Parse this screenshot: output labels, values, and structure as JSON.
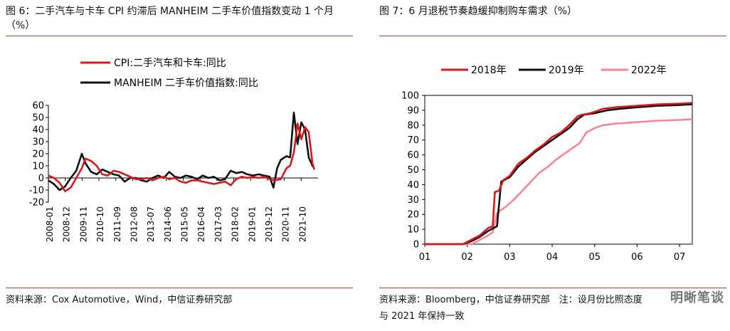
{
  "left": {
    "title": "图 6：二手汽车与卡车 CPI 约滞后 MANHEIM 二手车价值指数变动 1 个月（%）",
    "source": "资料来源：Cox Automotive，Wind，中信证券研究部"
  },
  "right": {
    "title": "图 7：6 月退税节奏趋缓抑制购车需求（%）",
    "source_line1": "资料来源：Bloomberg，中信证券研究部　注：设月份比照态度",
    "source_line2": "与 2021 年保持一致"
  },
  "watermark": "明晰笔谈",
  "chart_data": [
    {
      "type": "line",
      "title": "图 6：二手汽车与卡车 CPI 约滞后 MANHEIM 二手车价值指数变动 1 个月（%）",
      "ylim": [
        -20,
        60
      ],
      "yticks": [
        60,
        50,
        40,
        30,
        20,
        10,
        0,
        -10,
        -20
      ],
      "xlim": [
        2008.0,
        2022.5
      ],
      "xticks": [
        "2008-01",
        "2008-12",
        "2009-11",
        "2010-10",
        "2011-09",
        "2012-08",
        "2013-07",
        "2014-06",
        "2015-05",
        "2016-04",
        "2017-03",
        "2018-02",
        "2019-01",
        "2019-12",
        "2020-11",
        "2021-10"
      ],
      "grid": false,
      "legend": "top",
      "series": [
        {
          "name": "CPI:二手汽车和卡车:同比",
          "color": "#d7191c",
          "points": [
            [
              2008.0,
              2
            ],
            [
              2008.3,
              0
            ],
            [
              2008.6,
              -4
            ],
            [
              2008.9,
              -11
            ],
            [
              2009.2,
              -8
            ],
            [
              2009.5,
              0
            ],
            [
              2009.8,
              8
            ],
            [
              2010.0,
              16
            ],
            [
              2010.3,
              14
            ],
            [
              2010.6,
              10
            ],
            [
              2010.9,
              3
            ],
            [
              2011.2,
              2
            ],
            [
              2011.5,
              6
            ],
            [
              2011.8,
              5
            ],
            [
              2012.1,
              3
            ],
            [
              2012.4,
              1
            ],
            [
              2012.7,
              -1
            ],
            [
              2013.0,
              -1
            ],
            [
              2013.3,
              0
            ],
            [
              2013.6,
              -2
            ],
            [
              2013.9,
              0
            ],
            [
              2014.2,
              1
            ],
            [
              2014.5,
              -1
            ],
            [
              2014.8,
              0
            ],
            [
              2015.1,
              -3
            ],
            [
              2015.4,
              -4
            ],
            [
              2015.7,
              -2
            ],
            [
              2016.0,
              -2
            ],
            [
              2016.3,
              -3
            ],
            [
              2016.6,
              -4
            ],
            [
              2016.9,
              -5
            ],
            [
              2017.2,
              -4
            ],
            [
              2017.5,
              -3
            ],
            [
              2017.8,
              -6
            ],
            [
              2018.1,
              -1
            ],
            [
              2018.4,
              1
            ],
            [
              2018.7,
              0
            ],
            [
              2019.0,
              1
            ],
            [
              2019.3,
              0
            ],
            [
              2019.6,
              1
            ],
            [
              2019.9,
              -1
            ],
            [
              2020.2,
              -2
            ],
            [
              2020.5,
              -1
            ],
            [
              2020.8,
              8
            ],
            [
              2021.0,
              10
            ],
            [
              2021.2,
              21
            ],
            [
              2021.4,
              45
            ],
            [
              2021.6,
              32
            ],
            [
              2021.8,
              42
            ],
            [
              2022.0,
              38
            ],
            [
              2022.2,
              12
            ],
            [
              2022.3,
              7
            ]
          ]
        },
        {
          "name": "MANHEIM 二手车价值指数:同比",
          "color": "#111111",
          "points": [
            [
              2008.0,
              -2
            ],
            [
              2008.3,
              -5
            ],
            [
              2008.6,
              -10
            ],
            [
              2008.9,
              -7
            ],
            [
              2009.2,
              0
            ],
            [
              2009.5,
              6
            ],
            [
              2009.8,
              20
            ],
            [
              2010.0,
              12
            ],
            [
              2010.3,
              5
            ],
            [
              2010.6,
              3
            ],
            [
              2010.9,
              7
            ],
            [
              2011.2,
              5
            ],
            [
              2011.5,
              3
            ],
            [
              2011.8,
              2
            ],
            [
              2012.1,
              -3
            ],
            [
              2012.4,
              0
            ],
            [
              2012.7,
              0
            ],
            [
              2013.0,
              -2
            ],
            [
              2013.3,
              -3
            ],
            [
              2013.6,
              0
            ],
            [
              2013.9,
              2
            ],
            [
              2014.2,
              0
            ],
            [
              2014.5,
              5
            ],
            [
              2014.8,
              1
            ],
            [
              2015.1,
              0
            ],
            [
              2015.4,
              2
            ],
            [
              2015.7,
              1
            ],
            [
              2016.0,
              -1
            ],
            [
              2016.3,
              2
            ],
            [
              2016.6,
              0
            ],
            [
              2016.9,
              1
            ],
            [
              2017.2,
              -2
            ],
            [
              2017.5,
              -1
            ],
            [
              2017.8,
              6
            ],
            [
              2018.1,
              4
            ],
            [
              2018.4,
              5
            ],
            [
              2018.7,
              3
            ],
            [
              2019.0,
              2
            ],
            [
              2019.3,
              3
            ],
            [
              2019.6,
              2
            ],
            [
              2019.9,
              1
            ],
            [
              2020.1,
              -8
            ],
            [
              2020.3,
              8
            ],
            [
              2020.5,
              15
            ],
            [
              2020.8,
              18
            ],
            [
              2021.0,
              17
            ],
            [
              2021.2,
              54
            ],
            [
              2021.4,
              28
            ],
            [
              2021.6,
              46
            ],
            [
              2021.8,
              40
            ],
            [
              2022.0,
              17
            ],
            [
              2022.2,
              10
            ],
            [
              2022.3,
              8
            ]
          ]
        }
      ]
    },
    {
      "type": "line",
      "title": "图 7：6 月退税节奏趋缓抑制购车需求（%）",
      "ylim": [
        0,
        100
      ],
      "yticks": [
        100,
        90,
        80,
        70,
        60,
        50,
        40,
        30,
        20,
        10,
        0
      ],
      "xlim": [
        1,
        7.3
      ],
      "xticks": [
        "01",
        "02",
        "03",
        "04",
        "05",
        "06",
        "07"
      ],
      "grid": false,
      "legend": "top",
      "series": [
        {
          "name": "2018年",
          "color": "#d7191c",
          "points": [
            [
              1.0,
              0
            ],
            [
              1.9,
              0
            ],
            [
              2.1,
              3
            ],
            [
              2.3,
              6
            ],
            [
              2.5,
              11
            ],
            [
              2.6,
              12
            ],
            [
              2.65,
              35
            ],
            [
              2.75,
              36
            ],
            [
              2.85,
              43
            ],
            [
              3.0,
              46
            ],
            [
              3.2,
              54
            ],
            [
              3.4,
              58
            ],
            [
              3.6,
              63
            ],
            [
              3.8,
              67
            ],
            [
              4.0,
              72
            ],
            [
              4.2,
              75
            ],
            [
              4.4,
              80
            ],
            [
              4.6,
              86
            ],
            [
              4.7,
              87
            ],
            [
              4.9,
              88
            ],
            [
              5.2,
              91
            ],
            [
              5.5,
              92
            ],
            [
              6.0,
              93
            ],
            [
              6.5,
              94
            ],
            [
              7.0,
              94.5
            ],
            [
              7.3,
              95
            ]
          ]
        },
        {
          "name": "2019年",
          "color": "#111111",
          "points": [
            [
              1.0,
              0
            ],
            [
              1.9,
              0
            ],
            [
              2.1,
              2
            ],
            [
              2.3,
              5
            ],
            [
              2.5,
              9
            ],
            [
              2.7,
              12
            ],
            [
              2.8,
              42
            ],
            [
              3.0,
              45
            ],
            [
              3.2,
              52
            ],
            [
              3.4,
              57
            ],
            [
              3.6,
              62
            ],
            [
              3.8,
              66
            ],
            [
              4.0,
              70
            ],
            [
              4.2,
              74
            ],
            [
              4.4,
              78
            ],
            [
              4.6,
              84
            ],
            [
              4.75,
              87
            ],
            [
              5.0,
              88
            ],
            [
              5.3,
              90
            ],
            [
              5.6,
              91
            ],
            [
              6.0,
              92
            ],
            [
              6.5,
              93
            ],
            [
              7.0,
              93.5
            ],
            [
              7.3,
              94
            ]
          ]
        },
        {
          "name": "2022年",
          "color": "#f4869a",
          "points": [
            [
              1.0,
              0
            ],
            [
              2.1,
              0
            ],
            [
              2.3,
              3
            ],
            [
              2.5,
              6
            ],
            [
              2.6,
              8
            ],
            [
              2.7,
              21
            ],
            [
              2.9,
              25
            ],
            [
              3.1,
              30
            ],
            [
              3.3,
              36
            ],
            [
              3.5,
              42
            ],
            [
              3.7,
              48
            ],
            [
              3.9,
              52
            ],
            [
              4.1,
              57
            ],
            [
              4.3,
              61
            ],
            [
              4.5,
              65
            ],
            [
              4.65,
              68
            ],
            [
              4.8,
              75
            ],
            [
              5.0,
              78
            ],
            [
              5.2,
              80
            ],
            [
              5.5,
              81
            ],
            [
              6.0,
              82
            ],
            [
              6.5,
              83
            ],
            [
              7.0,
              83.5
            ],
            [
              7.3,
              84
            ]
          ]
        }
      ]
    }
  ]
}
